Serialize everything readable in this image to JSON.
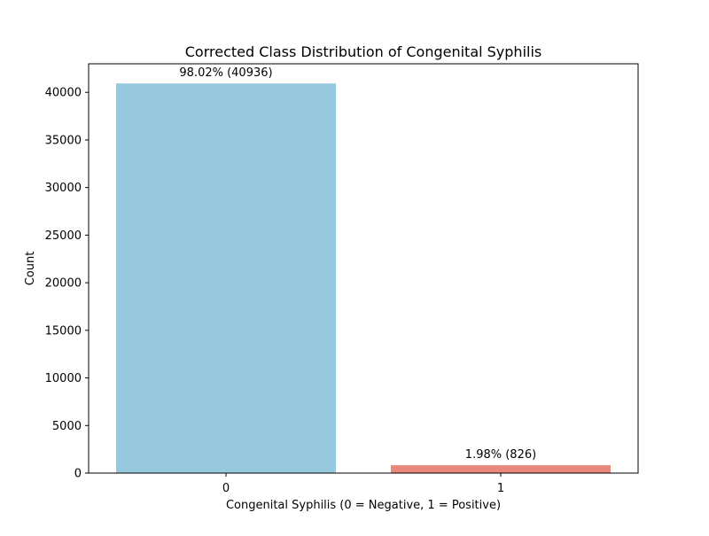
{
  "chart_data": {
    "type": "bar",
    "title": "Corrected Class Distribution of Congenital Syphilis",
    "xlabel": "Congenital Syphilis (0 = Negative, 1 = Positive)",
    "ylabel": "Count",
    "categories": [
      "0",
      "1"
    ],
    "values": [
      40936,
      826
    ],
    "data_labels": [
      "98.02% (40936)",
      "1.98% (826)"
    ],
    "bar_colors": [
      "#96c9de",
      "#e8877a"
    ],
    "ylim": [
      0,
      43000
    ],
    "yticks": [
      0,
      5000,
      10000,
      15000,
      20000,
      25000,
      30000,
      35000,
      40000
    ],
    "grid": false,
    "legend": "none"
  }
}
